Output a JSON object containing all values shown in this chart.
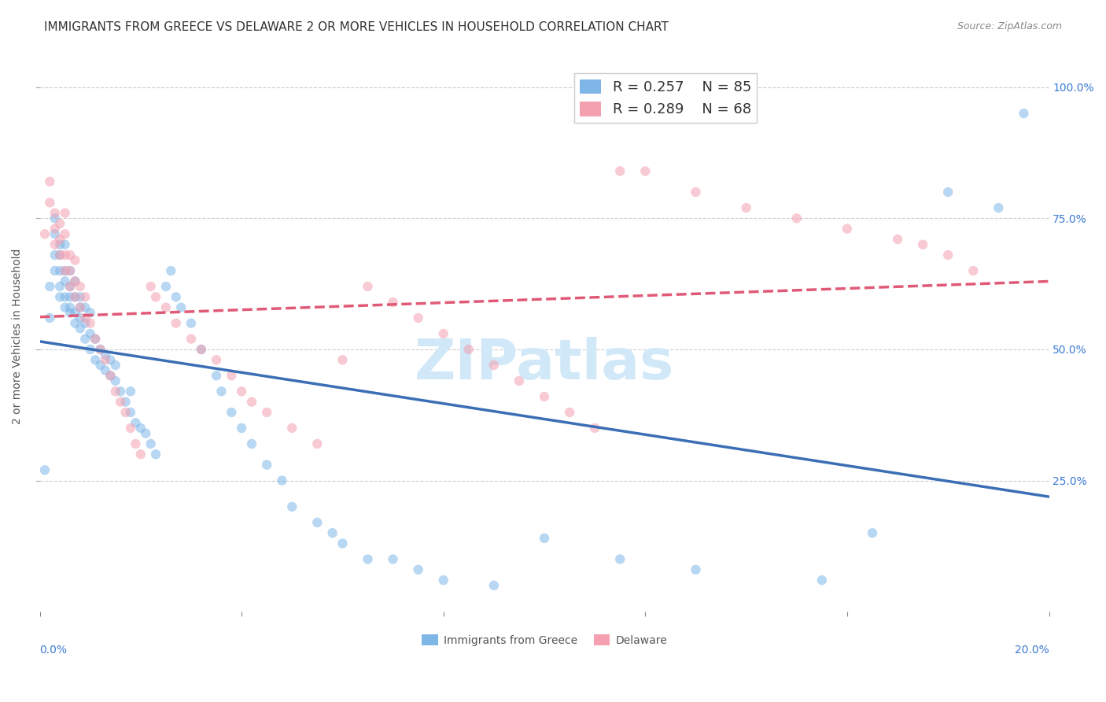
{
  "title": "IMMIGRANTS FROM GREECE VS DELAWARE 2 OR MORE VEHICLES IN HOUSEHOLD CORRELATION CHART",
  "source_text": "Source: ZipAtlas.com",
  "ylabel": "2 or more Vehicles in Household",
  "xlabel_bottom_left": "0.0%",
  "xlabel_bottom_right": "20.0%",
  "xmin": 0.0,
  "xmax": 0.2,
  "ymin": 0.0,
  "ymax": 1.05,
  "yticks": [
    0.25,
    0.5,
    0.75,
    1.0
  ],
  "ytick_labels": [
    "25.0%",
    "50.0%",
    "75.0%",
    "100.0%"
  ],
  "legend_blue_r": "R = 0.257",
  "legend_blue_n": "N = 85",
  "legend_pink_r": "R = 0.289",
  "legend_pink_n": "N = 68",
  "blue_color": "#7EB6E8",
  "pink_color": "#F4A0B0",
  "blue_line_color": "#3B6EB5",
  "pink_line_color": "#E05A78",
  "watermark_text": "ZIPatlas",
  "watermark_color": "#D0E8F8",
  "background_color": "#FFFFFF",
  "title_fontsize": 11,
  "scatter_alpha": 0.55,
  "scatter_size": 80,
  "blue_scatter_x": [
    0.001,
    0.002,
    0.002,
    0.003,
    0.003,
    0.003,
    0.003,
    0.004,
    0.004,
    0.004,
    0.004,
    0.004,
    0.005,
    0.005,
    0.005,
    0.005,
    0.005,
    0.006,
    0.006,
    0.006,
    0.006,
    0.006,
    0.007,
    0.007,
    0.007,
    0.007,
    0.008,
    0.008,
    0.008,
    0.008,
    0.009,
    0.009,
    0.009,
    0.01,
    0.01,
    0.01,
    0.011,
    0.011,
    0.012,
    0.012,
    0.013,
    0.013,
    0.014,
    0.014,
    0.015,
    0.015,
    0.016,
    0.017,
    0.018,
    0.018,
    0.019,
    0.02,
    0.021,
    0.022,
    0.023,
    0.025,
    0.026,
    0.027,
    0.028,
    0.03,
    0.032,
    0.035,
    0.036,
    0.038,
    0.04,
    0.042,
    0.045,
    0.048,
    0.05,
    0.055,
    0.058,
    0.06,
    0.065,
    0.07,
    0.075,
    0.08,
    0.09,
    0.1,
    0.115,
    0.13,
    0.155,
    0.165,
    0.18,
    0.19,
    0.195
  ],
  "blue_scatter_y": [
    0.27,
    0.56,
    0.62,
    0.65,
    0.68,
    0.72,
    0.75,
    0.6,
    0.62,
    0.65,
    0.68,
    0.7,
    0.58,
    0.6,
    0.63,
    0.65,
    0.7,
    0.57,
    0.58,
    0.6,
    0.62,
    0.65,
    0.55,
    0.57,
    0.6,
    0.63,
    0.54,
    0.56,
    0.58,
    0.6,
    0.52,
    0.55,
    0.58,
    0.5,
    0.53,
    0.57,
    0.48,
    0.52,
    0.47,
    0.5,
    0.46,
    0.49,
    0.45,
    0.48,
    0.44,
    0.47,
    0.42,
    0.4,
    0.38,
    0.42,
    0.36,
    0.35,
    0.34,
    0.32,
    0.3,
    0.62,
    0.65,
    0.6,
    0.58,
    0.55,
    0.5,
    0.45,
    0.42,
    0.38,
    0.35,
    0.32,
    0.28,
    0.25,
    0.2,
    0.17,
    0.15,
    0.13,
    0.1,
    0.1,
    0.08,
    0.06,
    0.05,
    0.14,
    0.1,
    0.08,
    0.06,
    0.15,
    0.8,
    0.77,
    0.95
  ],
  "pink_scatter_x": [
    0.001,
    0.002,
    0.002,
    0.003,
    0.003,
    0.003,
    0.004,
    0.004,
    0.004,
    0.005,
    0.005,
    0.005,
    0.005,
    0.006,
    0.006,
    0.006,
    0.007,
    0.007,
    0.007,
    0.008,
    0.008,
    0.009,
    0.009,
    0.01,
    0.011,
    0.012,
    0.013,
    0.014,
    0.015,
    0.016,
    0.017,
    0.018,
    0.019,
    0.02,
    0.022,
    0.023,
    0.025,
    0.027,
    0.03,
    0.032,
    0.035,
    0.038,
    0.04,
    0.042,
    0.045,
    0.05,
    0.055,
    0.06,
    0.065,
    0.07,
    0.075,
    0.08,
    0.085,
    0.09,
    0.095,
    0.1,
    0.105,
    0.11,
    0.115,
    0.12,
    0.13,
    0.14,
    0.15,
    0.16,
    0.17,
    0.175,
    0.18,
    0.185
  ],
  "pink_scatter_y": [
    0.72,
    0.78,
    0.82,
    0.7,
    0.73,
    0.76,
    0.68,
    0.71,
    0.74,
    0.65,
    0.68,
    0.72,
    0.76,
    0.62,
    0.65,
    0.68,
    0.6,
    0.63,
    0.67,
    0.58,
    0.62,
    0.56,
    0.6,
    0.55,
    0.52,
    0.5,
    0.48,
    0.45,
    0.42,
    0.4,
    0.38,
    0.35,
    0.32,
    0.3,
    0.62,
    0.6,
    0.58,
    0.55,
    0.52,
    0.5,
    0.48,
    0.45,
    0.42,
    0.4,
    0.38,
    0.35,
    0.32,
    0.48,
    0.62,
    0.59,
    0.56,
    0.53,
    0.5,
    0.47,
    0.44,
    0.41,
    0.38,
    0.35,
    0.84,
    0.84,
    0.8,
    0.77,
    0.75,
    0.73,
    0.71,
    0.7,
    0.68,
    0.65
  ]
}
